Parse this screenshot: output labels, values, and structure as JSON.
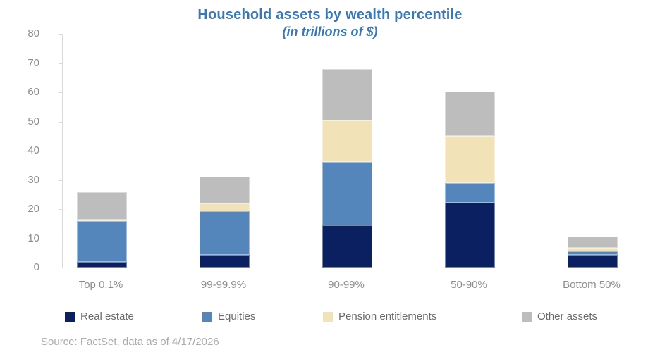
{
  "chart_data": {
    "type": "bar",
    "stacked": true,
    "title": "Household assets by wealth percentile",
    "subtitle": "(in trillions of $)",
    "categories": [
      "Top 0.1%",
      "99-99.9%",
      "90-99%",
      "50-90%",
      "Bottom 50%"
    ],
    "series": [
      {
        "name": "Real estate",
        "color": "#0A2060",
        "values": [
          2.0,
          4.4,
          14.5,
          22.2,
          4.4
        ]
      },
      {
        "name": "Equities",
        "color": "#5486BC",
        "values": [
          13.8,
          14.9,
          21.6,
          6.7,
          1.1
        ]
      },
      {
        "name": "Pension entitlements",
        "color": "#F2E2B8",
        "values": [
          0.6,
          2.6,
          14.3,
          16.1,
          1.3
        ]
      },
      {
        "name": "Other assets",
        "color": "#BDBDBD",
        "values": [
          9.4,
          9.2,
          17.6,
          15.2,
          3.8
        ]
      }
    ],
    "approx_totals": [
      25.8,
      31.1,
      68.0,
      60.2,
      10.6
    ],
    "ylim": [
      0,
      80
    ],
    "yticks": [
      0,
      10,
      20,
      30,
      40,
      50,
      60,
      70,
      80
    ],
    "ylabel": "",
    "xlabel": "",
    "grid": false,
    "legend_position": "bottom",
    "colors_meta": {
      "title_text": "#3878B8",
      "axis_line": "#D9D9D9",
      "axis_label_text": "#8C8C8C",
      "legend_text": "#6B6B6B",
      "source_text": "#ABABAB"
    }
  },
  "source_note": "Source: FactSet, data as of 4/17/2026"
}
